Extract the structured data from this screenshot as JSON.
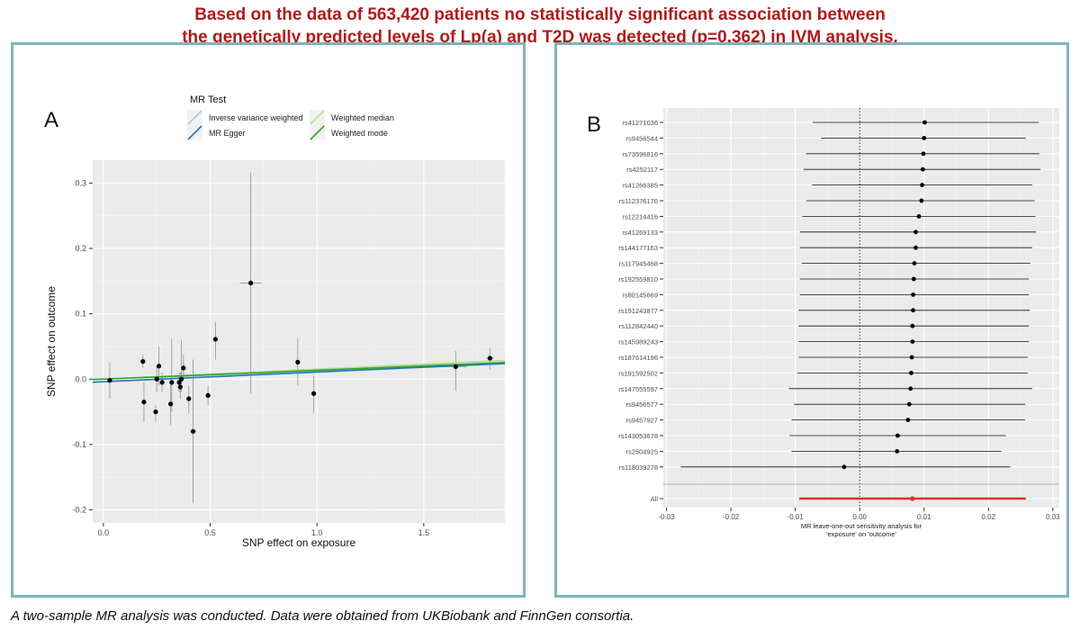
{
  "header": {
    "line1": "Based on the data of 563,420 patients no statistically significant association between",
    "line2": "the genetically predicted levels of Lp(a) and T2D was detected (p=0.362) in IVM analysis."
  },
  "footer": {
    "text": "A two-sample MR analysis was conducted. Data were obtained from UKBiobank and FinnGen consortia."
  },
  "colors": {
    "title_red": "#b01a1a",
    "panel_border": "#7fb3b9",
    "plot_bg": "#ebebeb",
    "grid": "#ffffff",
    "forest_all": "#e0331e"
  },
  "chart_data": [
    {
      "type": "scatter",
      "panel_label": "A",
      "xlabel": "SNP effect on exposure",
      "ylabel": "SNP effect on outcome",
      "xlim": [
        -0.05,
        1.88
      ],
      "ylim": [
        -0.22,
        0.335
      ],
      "x_ticks": [
        0.0,
        0.5,
        1.0,
        1.5
      ],
      "x_tick_labels": [
        "0.0",
        "0.5",
        "1.0",
        "1.5"
      ],
      "y_ticks": [
        -0.2,
        -0.1,
        0.0,
        0.1,
        0.2,
        0.3
      ],
      "y_tick_labels": [
        "-0.2",
        "-0.1",
        "0.0",
        "0.1",
        "0.2",
        "0.3"
      ],
      "legend": {
        "title": "MR Test",
        "placement": "top",
        "entries": [
          {
            "name": "Inverse variance weighted",
            "color": "#a6cee3"
          },
          {
            "name": "MR Egger",
            "color": "#1f78b4"
          },
          {
            "name": "Weighted median",
            "color": "#b2df8a"
          },
          {
            "name": "Weighted mode",
            "color": "#33a02c"
          }
        ]
      },
      "lines": [
        {
          "name": "Inverse variance weighted",
          "color": "#a6cee3",
          "intercept": 0.0,
          "slope": 0.0125
        },
        {
          "name": "MR Egger",
          "color": "#1f78b4",
          "intercept": -0.004,
          "slope": 0.0148
        },
        {
          "name": "Weighted median",
          "color": "#b2df8a",
          "intercept": 0.0,
          "slope": 0.0152
        },
        {
          "name": "Weighted mode",
          "color": "#33a02c",
          "intercept": 0.0,
          "slope": 0.0135
        }
      ],
      "points": [
        {
          "x": 0.03,
          "y": -0.002,
          "ylo": -0.03,
          "yhi": 0.025,
          "xlo": 0.02,
          "xhi": 0.04
        },
        {
          "x": 0.185,
          "y": 0.027,
          "ylo": 0.017,
          "yhi": 0.037,
          "xlo": 0.175,
          "xhi": 0.195
        },
        {
          "x": 0.19,
          "y": -0.035,
          "ylo": -0.065,
          "yhi": -0.005,
          "xlo": 0.18,
          "xhi": 0.2
        },
        {
          "x": 0.245,
          "y": -0.05,
          "ylo": -0.065,
          "yhi": -0.04,
          "xlo": 0.235,
          "xhi": 0.255
        },
        {
          "x": 0.25,
          "y": 0.0,
          "ylo": -0.02,
          "yhi": 0.02,
          "xlo": 0.24,
          "xhi": 0.26
        },
        {
          "x": 0.26,
          "y": 0.02,
          "ylo": -0.01,
          "yhi": 0.05,
          "xlo": 0.25,
          "xhi": 0.27
        },
        {
          "x": 0.275,
          "y": -0.005,
          "ylo": -0.02,
          "yhi": 0.01,
          "xlo": 0.265,
          "xhi": 0.285
        },
        {
          "x": 0.315,
          "y": -0.038,
          "ylo": -0.07,
          "yhi": -0.005,
          "xlo": 0.305,
          "xhi": 0.325
        },
        {
          "x": 0.32,
          "y": -0.005,
          "ylo": -0.05,
          "yhi": 0.062,
          "xlo": 0.31,
          "xhi": 0.33
        },
        {
          "x": 0.355,
          "y": -0.005,
          "ylo": -0.02,
          "yhi": 0.01,
          "xlo": 0.345,
          "xhi": 0.365
        },
        {
          "x": 0.36,
          "y": -0.012,
          "ylo": -0.03,
          "yhi": 0.01,
          "xlo": 0.35,
          "xhi": 0.37
        },
        {
          "x": 0.365,
          "y": 0.0,
          "ylo": -0.02,
          "yhi": 0.06,
          "xlo": 0.355,
          "xhi": 0.375
        },
        {
          "x": 0.375,
          "y": 0.017,
          "ylo": 0.0,
          "yhi": 0.037,
          "xlo": 0.365,
          "xhi": 0.385
        },
        {
          "x": 0.4,
          "y": -0.03,
          "ylo": -0.052,
          "yhi": -0.01,
          "xlo": 0.39,
          "xhi": 0.41
        },
        {
          "x": 0.42,
          "y": -0.08,
          "ylo": -0.19,
          "yhi": 0.03,
          "xlo": 0.405,
          "xhi": 0.435
        },
        {
          "x": 0.49,
          "y": -0.025,
          "ylo": -0.04,
          "yhi": -0.01,
          "xlo": 0.48,
          "xhi": 0.5
        },
        {
          "x": 0.525,
          "y": 0.061,
          "ylo": 0.03,
          "yhi": 0.087,
          "xlo": 0.515,
          "xhi": 0.535
        },
        {
          "x": 0.69,
          "y": 0.147,
          "ylo": -0.022,
          "yhi": 0.316,
          "xlo": 0.64,
          "xhi": 0.74
        },
        {
          "x": 0.91,
          "y": 0.026,
          "ylo": -0.01,
          "yhi": 0.062,
          "xlo": 0.9,
          "xhi": 0.92
        },
        {
          "x": 0.985,
          "y": -0.022,
          "ylo": -0.052,
          "yhi": 0.005,
          "xlo": 0.975,
          "xhi": 0.995
        },
        {
          "x": 1.65,
          "y": 0.019,
          "ylo": -0.018,
          "yhi": 0.043,
          "xlo": 1.6,
          "xhi": 1.7
        },
        {
          "x": 1.81,
          "y": 0.032,
          "ylo": 0.015,
          "yhi": 0.048,
          "xlo": 1.79,
          "xhi": 1.83
        }
      ]
    },
    {
      "type": "scatter",
      "subtype": "forest",
      "panel_label": "B",
      "xlabel": "MR leave-one-out sensitivity analysis for",
      "xlabel2": "'exposure' on 'outcome'",
      "xlim": [
        -0.0305,
        0.031
      ],
      "x_ticks": [
        -0.03,
        -0.02,
        -0.01,
        0.0,
        0.01,
        0.02,
        0.03
      ],
      "x_tick_labels": [
        "-0.03",
        "-0.02",
        "-0.01",
        "0.00",
        "0.01",
        "0.02",
        "0.03"
      ],
      "snps": [
        "rs41271036",
        "rs9456544",
        "rs73596816",
        "rs4252117",
        "rs41266385",
        "rs112376176",
        "rs12214416",
        "rs41269133",
        "rs144177163",
        "rs117945468",
        "rs192559810",
        "rs80145669",
        "rs191243877",
        "rs112842440",
        "rs145989243",
        "rs187614196",
        "rs191592502",
        "rs147555597",
        "rs9456577",
        "rs9457927",
        "rs143053678",
        "rs2504925",
        "rs118039278"
      ],
      "estimates": [
        0.0101,
        0.01,
        0.0099,
        0.0098,
        0.0097,
        0.0096,
        0.0092,
        0.0087,
        0.0087,
        0.0085,
        0.0084,
        0.0083,
        0.0083,
        0.0082,
        0.0082,
        0.0081,
        0.008,
        0.0079,
        0.0077,
        0.0075,
        0.0059,
        0.0058,
        -0.0024
      ],
      "ci_low": [
        -0.0073,
        -0.006,
        -0.0083,
        -0.0087,
        -0.0074,
        -0.0083,
        -0.0089,
        -0.0093,
        -0.0093,
        -0.009,
        -0.0093,
        -0.0093,
        -0.0095,
        -0.0095,
        -0.0095,
        -0.0095,
        -0.0097,
        -0.011,
        -0.0102,
        -0.0106,
        -0.0109,
        -0.0106,
        -0.0278
      ],
      "ci_high": [
        0.0278,
        0.0258,
        0.0279,
        0.0281,
        0.0268,
        0.0272,
        0.0273,
        0.0274,
        0.0268,
        0.0265,
        0.0263,
        0.0263,
        0.0264,
        0.0263,
        0.0263,
        0.0261,
        0.0261,
        0.0268,
        0.0257,
        0.0257,
        0.0227,
        0.022,
        0.0234
      ],
      "all": {
        "label": "All",
        "estimate": 0.0082,
        "ci_low": -0.0094,
        "ci_high": 0.0258
      }
    }
  ]
}
